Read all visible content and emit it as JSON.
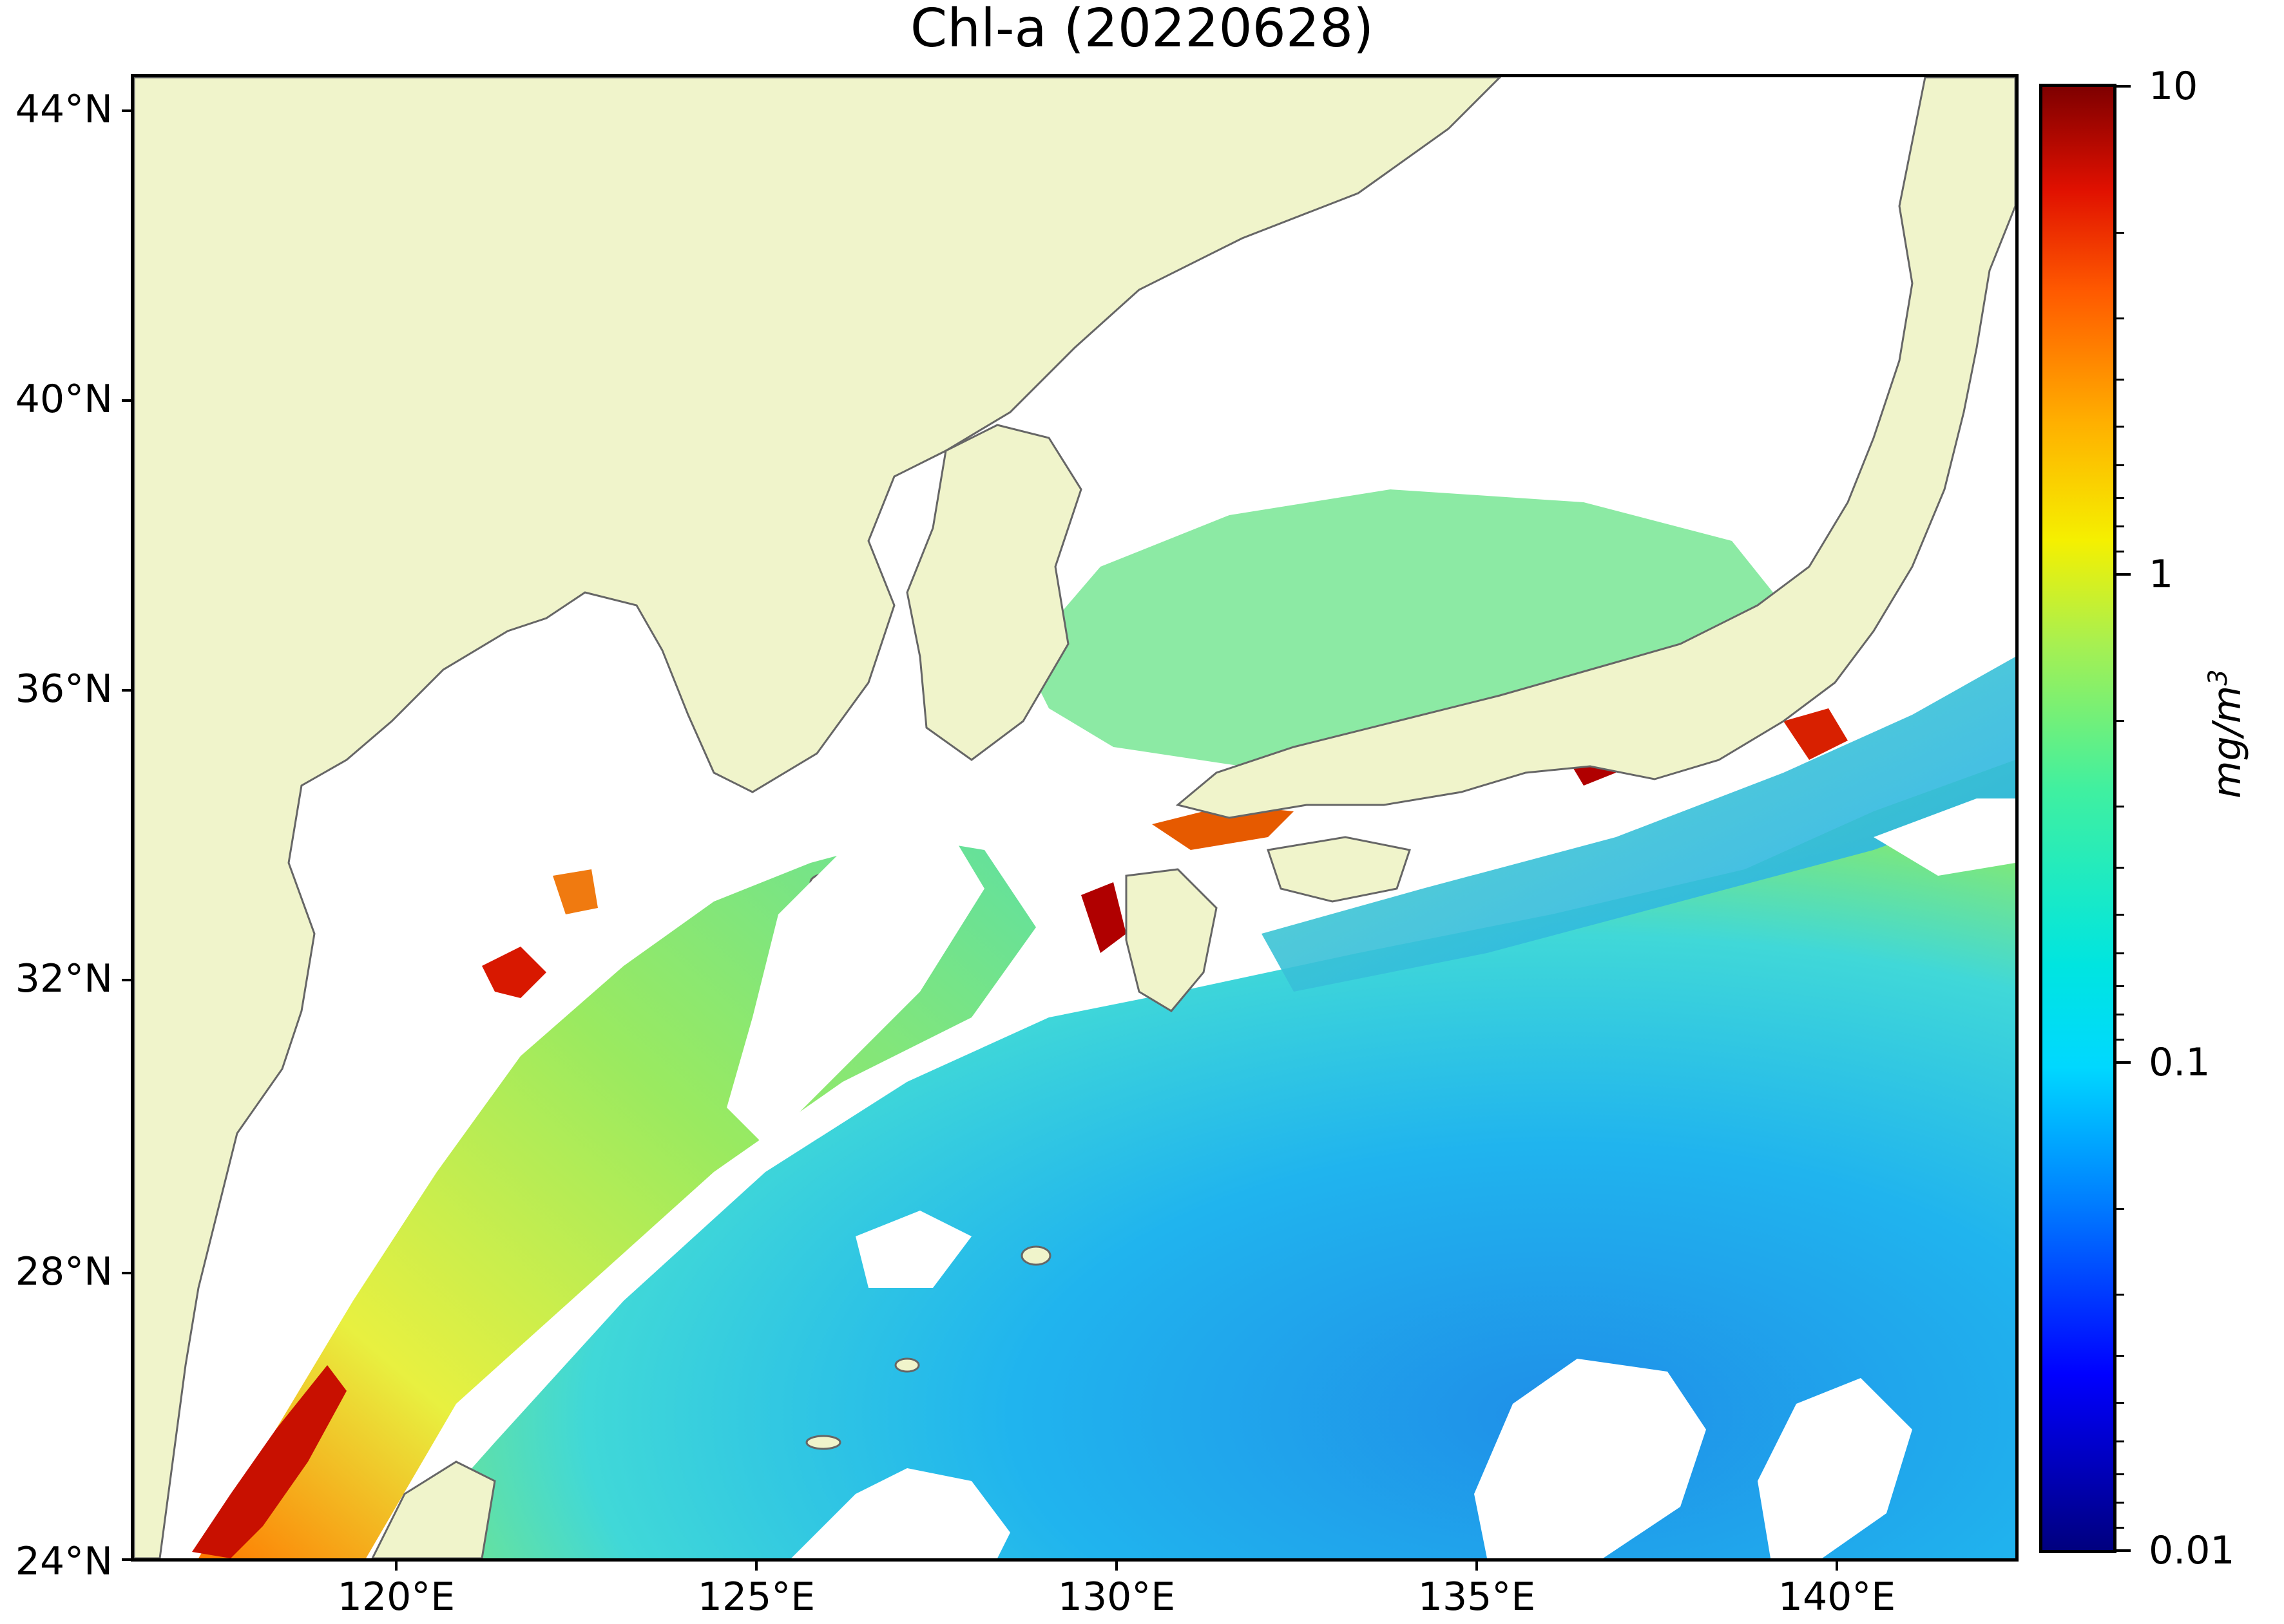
{
  "title": "Chl-a (20220628)",
  "map": {
    "latitude_labels": [
      "44°N",
      "40°N",
      "36°N",
      "32°N",
      "28°N",
      "24°N"
    ],
    "longitude_labels": [
      "120°E",
      "125°E",
      "130°E",
      "135°E",
      "140°E"
    ],
    "colors": {
      "land": "#f0f4cb",
      "coastline": "#666666",
      "no_data": "#ffffff",
      "open_ocean_low": "#1fa8f0",
      "coastal_high": "#d82000"
    }
  },
  "colorbar": {
    "tick_labels": [
      "10",
      "1",
      "0.1",
      "0.01"
    ],
    "unit": "mg/m",
    "unit_superscript": "3",
    "scale": "log",
    "range": [
      0.01,
      10
    ],
    "colormap": "jet"
  }
}
